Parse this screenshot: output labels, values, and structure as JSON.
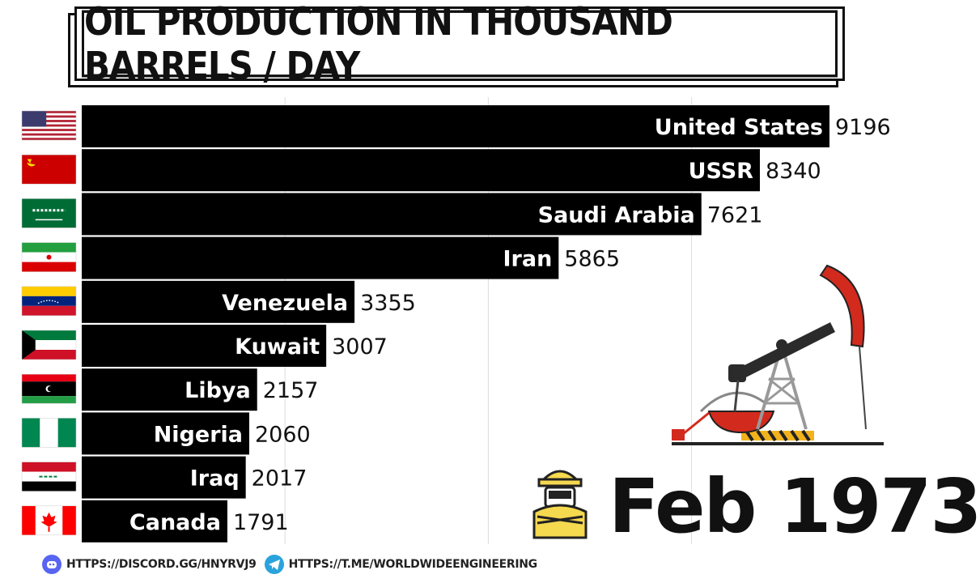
{
  "title": "OIL PRODUCTION IN THOUSAND BARRELS / DAY",
  "date_label": "Feb 1973",
  "footer": {
    "discord_icon": "discord-icon",
    "discord_text": "HTTPS://DISCORD.GG/HNYRVJ9",
    "telegram_icon": "telegram-icon",
    "telegram_text": "HTTPS://T.ME/WORLDWIDEENGINEERING"
  },
  "colors": {
    "bar": "#000000",
    "label": "#ffffff",
    "value": "#111111",
    "pump_red": "#d32a1e",
    "pump_arm": "#2b2b2b"
  },
  "chart_data": {
    "type": "bar",
    "orientation": "horizontal",
    "title": "OIL PRODUCTION IN THOUSAND BARRELS / DAY",
    "categories": [
      "United States",
      "USSR",
      "Saudi Arabia",
      "Iran",
      "Venezuela",
      "Kuwait",
      "Libya",
      "Nigeria",
      "Iraq",
      "Canada"
    ],
    "values": [
      9196,
      8340,
      7621,
      5865,
      3355,
      3007,
      2157,
      2060,
      2017,
      1791
    ],
    "flags": [
      "us-flag-icon",
      "ussr-flag-icon",
      "saudi-arabia-flag-icon",
      "iran-flag-icon",
      "venezuela-flag-icon",
      "kuwait-flag-icon",
      "libya-flag-icon",
      "nigeria-flag-icon",
      "iraq-flag-icon",
      "canada-flag-icon"
    ],
    "xlim": [
      0,
      9196
    ],
    "grid": true,
    "legend": "none"
  }
}
